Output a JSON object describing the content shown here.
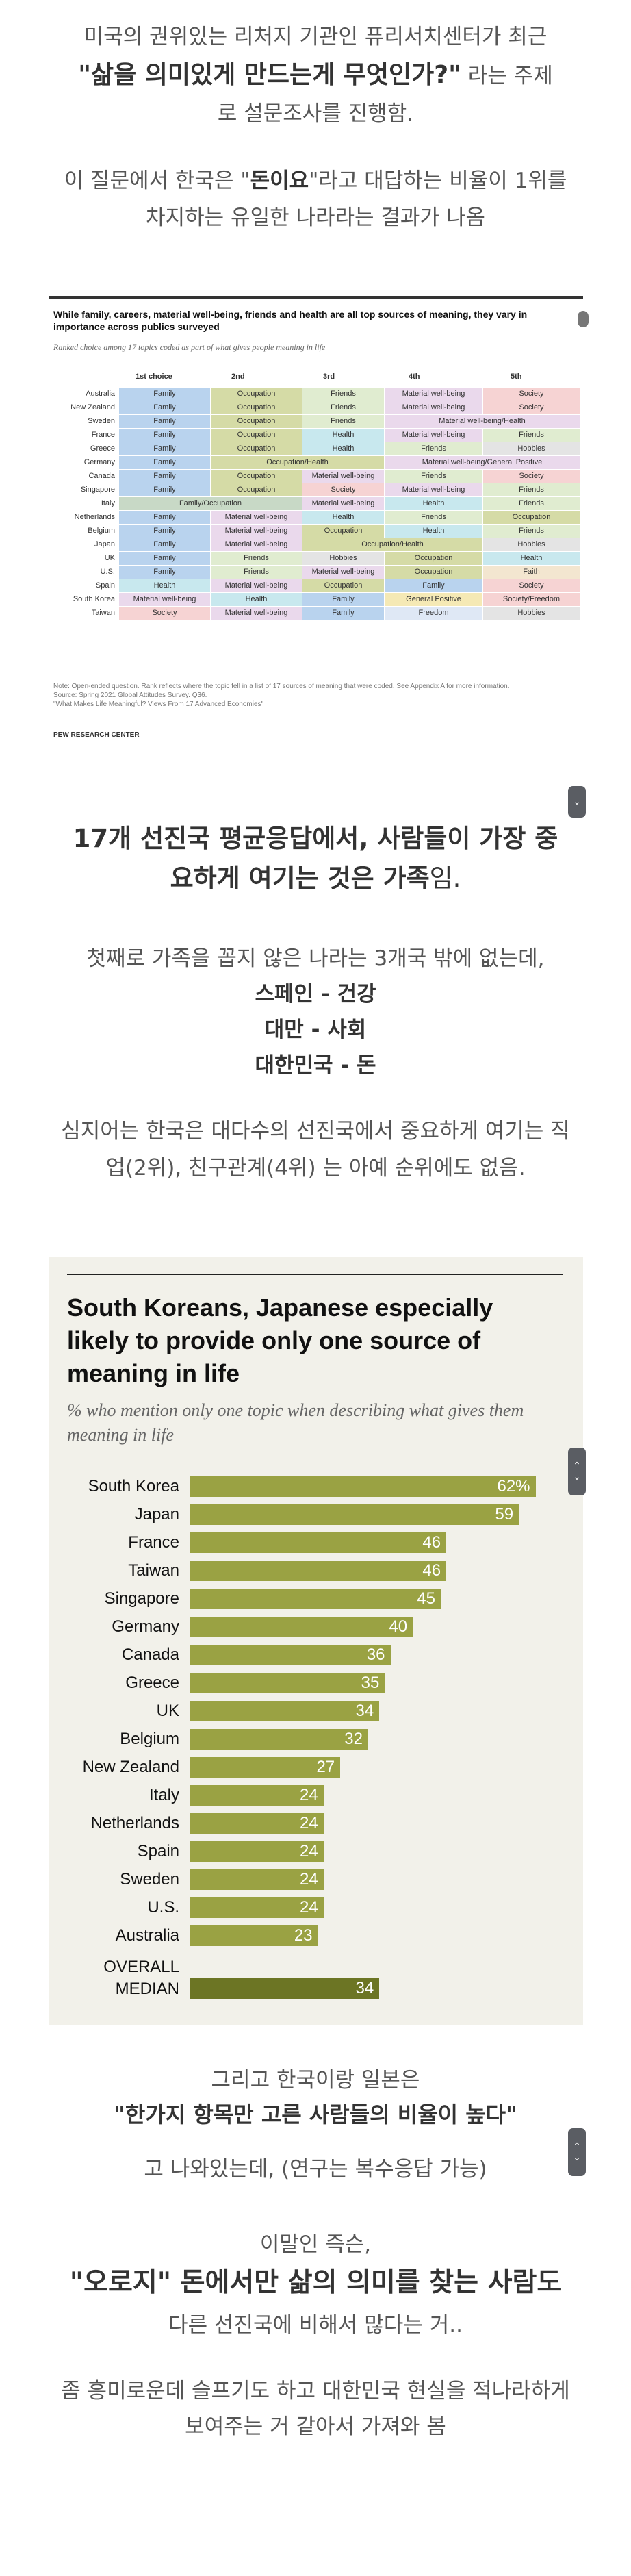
{
  "intro": {
    "line1": "미국의 권위있는 리처지 기관인 퓨리서치센터가 최근",
    "question": "\"삶을 의미있게 만드는게 무엇인가?\"",
    "line2_tail": " 라는 주제",
    "line3": "로 설문조사를 진행함.",
    "line4_pre": "이 질문에서 한국은 \"",
    "line4_bold": "돈이요",
    "line4_post": "\"라고 대답하는 비율이 1위를",
    "line5": "차지하는 유일한 나라라는 결과가 나옴"
  },
  "table_figure": {
    "title": "While family, careers, material well-being, friends and health are all top sources of meaning, they vary in importance across publics surveyed",
    "subtitle": "Ranked choice among 17 topics coded as part of what gives people meaning in life",
    "columns": [
      "1st choice",
      "2nd",
      "3rd",
      "4th",
      "5th"
    ],
    "colors": {
      "Family": "#b9d3ee",
      "Occupation": "#d5dba6",
      "Friends": "#e0ecd0",
      "Material well-being": "#ead9ec",
      "Society": "#f6d3d3",
      "Health": "#c8e8ee",
      "Hobbies": "#e4e4e4",
      "General Positive": "#f5e9b5",
      "Faith": "#f3e6d0",
      "Freedom": "#dfe8f5",
      "Society/Freedom": "#f6d3d3",
      "Occupation/Health": "#d5dba6",
      "Family/Occupation": "#c8d9c6",
      "Material well-being/Health": "#ead9ec",
      "Material well-being/General Positive": "#ead9ec"
    },
    "rows": [
      {
        "country": "Australia",
        "cells": [
          {
            "t": "Family",
            "s": 1
          },
          {
            "t": "Occupation",
            "s": 1
          },
          {
            "t": "Friends",
            "s": 1
          },
          {
            "t": "Material well-being",
            "s": 1
          },
          {
            "t": "Society",
            "s": 1
          }
        ]
      },
      {
        "country": "New Zealand",
        "cells": [
          {
            "t": "Family",
            "s": 1
          },
          {
            "t": "Occupation",
            "s": 1
          },
          {
            "t": "Friends",
            "s": 1
          },
          {
            "t": "Material well-being",
            "s": 1
          },
          {
            "t": "Society",
            "s": 1
          }
        ]
      },
      {
        "country": "Sweden",
        "cells": [
          {
            "t": "Family",
            "s": 1
          },
          {
            "t": "Occupation",
            "s": 1
          },
          {
            "t": "Friends",
            "s": 1
          },
          {
            "t": "Material well-being/Health",
            "s": 2
          }
        ]
      },
      {
        "country": "France",
        "cells": [
          {
            "t": "Family",
            "s": 1
          },
          {
            "t": "Occupation",
            "s": 1
          },
          {
            "t": "Health",
            "s": 1
          },
          {
            "t": "Material well-being",
            "s": 1
          },
          {
            "t": "Friends",
            "s": 1
          }
        ]
      },
      {
        "country": "Greece",
        "cells": [
          {
            "t": "Family",
            "s": 1
          },
          {
            "t": "Occupation",
            "s": 1
          },
          {
            "t": "Health",
            "s": 1
          },
          {
            "t": "Friends",
            "s": 1
          },
          {
            "t": "Hobbies",
            "s": 1
          }
        ]
      },
      {
        "country": "Germany",
        "cells": [
          {
            "t": "Family",
            "s": 1
          },
          {
            "t": "Occupation/Health",
            "s": 2
          },
          {
            "t": "Material well-being/General Positive",
            "s": 2
          }
        ]
      },
      {
        "country": "Canada",
        "cells": [
          {
            "t": "Family",
            "s": 1
          },
          {
            "t": "Occupation",
            "s": 1
          },
          {
            "t": "Material well-being",
            "s": 1
          },
          {
            "t": "Friends",
            "s": 1
          },
          {
            "t": "Society",
            "s": 1
          }
        ]
      },
      {
        "country": "Singapore",
        "cells": [
          {
            "t": "Family",
            "s": 1
          },
          {
            "t": "Occupation",
            "s": 1
          },
          {
            "t": "Society",
            "s": 1
          },
          {
            "t": "Material well-being",
            "s": 1
          },
          {
            "t": "Friends",
            "s": 1
          }
        ]
      },
      {
        "country": "Italy",
        "cells": [
          {
            "t": "Family/Occupation",
            "s": 2
          },
          {
            "t": "Material well-being",
            "s": 1
          },
          {
            "t": "Health",
            "s": 1
          },
          {
            "t": "Friends",
            "s": 1
          }
        ]
      },
      {
        "country": "Netherlands",
        "cells": [
          {
            "t": "Family",
            "s": 1
          },
          {
            "t": "Material well-being",
            "s": 1
          },
          {
            "t": "Health",
            "s": 1
          },
          {
            "t": "Friends",
            "s": 1
          },
          {
            "t": "Occupation",
            "s": 1
          }
        ]
      },
      {
        "country": "Belgium",
        "cells": [
          {
            "t": "Family",
            "s": 1
          },
          {
            "t": "Material well-being",
            "s": 1
          },
          {
            "t": "Occupation",
            "s": 1
          },
          {
            "t": "Health",
            "s": 1
          },
          {
            "t": "Friends",
            "s": 1
          }
        ]
      },
      {
        "country": "Japan",
        "cells": [
          {
            "t": "Family",
            "s": 1
          },
          {
            "t": "Material well-being",
            "s": 1
          },
          {
            "t": "Occupation/Health",
            "s": 2
          },
          {
            "t": "Hobbies",
            "s": 1
          }
        ]
      },
      {
        "country": "UK",
        "cells": [
          {
            "t": "Family",
            "s": 1
          },
          {
            "t": "Friends",
            "s": 1
          },
          {
            "t": "Hobbies",
            "s": 1
          },
          {
            "t": "Occupation",
            "s": 1
          },
          {
            "t": "Health",
            "s": 1
          }
        ]
      },
      {
        "country": "U.S.",
        "cells": [
          {
            "t": "Family",
            "s": 1
          },
          {
            "t": "Friends",
            "s": 1
          },
          {
            "t": "Material well-being",
            "s": 1
          },
          {
            "t": "Occupation",
            "s": 1
          },
          {
            "t": "Faith",
            "s": 1
          }
        ]
      },
      {
        "country": "Spain",
        "cells": [
          {
            "t": "Health",
            "s": 1
          },
          {
            "t": "Material well-being",
            "s": 1
          },
          {
            "t": "Occupation",
            "s": 1
          },
          {
            "t": "Family",
            "s": 1
          },
          {
            "t": "Society",
            "s": 1
          }
        ]
      },
      {
        "country": "South Korea",
        "cells": [
          {
            "t": "Material well-being",
            "s": 1
          },
          {
            "t": "Health",
            "s": 1
          },
          {
            "t": "Family",
            "s": 1
          },
          {
            "t": "General Positive",
            "s": 1
          },
          {
            "t": "Society/Freedom",
            "s": 1
          }
        ]
      },
      {
        "country": "Taiwan",
        "cells": [
          {
            "t": "Society",
            "s": 1
          },
          {
            "t": "Material well-being",
            "s": 1
          },
          {
            "t": "Family",
            "s": 1
          },
          {
            "t": "Freedom",
            "s": 1
          },
          {
            "t": "Hobbies",
            "s": 1
          }
        ]
      }
    ],
    "note": "Note: Open-ended question. Rank reflects where the topic fell in a list of 17 sources of meaning that were coded. See Appendix A for more information.",
    "source": "Source: Spring 2021 Global Attitudes Survey. Q36.",
    "report": "\"What Makes Life Meaningful? Views From 17 Advanced Economies\"",
    "org": "PEW RESEARCH CENTER"
  },
  "middle": {
    "headline_pre": "17개 선진국 평균응답에서, 사람들이 가장 중",
    "headline_mid": "요하게 여기는 것은 가족",
    "headline_post": "임.",
    "p1": "첫째로 가족을 꼽지 않은 나라는 3개국 밖에 없는데,",
    "country1": "스페인 - 건강",
    "country2": "대만 - 사회",
    "country3": "대한민국 - 돈",
    "p2_line1": "심지어는 한국은 대다수의 선진국에서 중요하게 여기는 직",
    "p2_line2": "업(2위), 친구관계(4위) 는 아예 순위에도 없음."
  },
  "chart_data": {
    "type": "bar",
    "title": "South Koreans, Japanese especially likely to provide only one source of meaning in life",
    "subtitle": "% who mention only one topic when describing what gives them meaning in life",
    "categories": [
      "South Korea",
      "Japan",
      "France",
      "Taiwan",
      "Singapore",
      "Germany",
      "Canada",
      "Greece",
      "UK",
      "Belgium",
      "New Zealand",
      "Italy",
      "Netherlands",
      "Spain",
      "Sweden",
      "U.S.",
      "Australia",
      "OVERALL MEDIAN"
    ],
    "values": [
      62,
      59,
      46,
      46,
      45,
      40,
      36,
      35,
      34,
      32,
      27,
      24,
      24,
      24,
      24,
      24,
      23,
      34
    ],
    "value_labels": [
      "62%",
      "59",
      "46",
      "46",
      "45",
      "40",
      "36",
      "35",
      "34",
      "32",
      "27",
      "24",
      "24",
      "24",
      "24",
      "24",
      "23",
      "34"
    ],
    "median_label_line1": "OVERALL",
    "median_label_line2": "MEDIAN",
    "bar_color": "#9aa243",
    "median_color": "#6c7524",
    "xlim": [
      0,
      65
    ]
  },
  "outro": {
    "l1": "그리고 한국이랑 일본은",
    "l2": "\"한가지 항목만 고른 사람들의 비율이 높다\"",
    "l3": "고 나와있는데, (연구는 복수응답 가능)",
    "l4": "이말인 즉슨,",
    "l5": "\"오로지\" 돈에서만 삶의 의미를 찾는 사람도",
    "l6": "다른 선진국에 비해서 많다는 거..",
    "l7": "좀 흥미로운데 슬프기도 하고 대한민국 현실을 적나라하게",
    "l8": "보여주는 거 같아서 가져와 봄"
  },
  "scroll_glyphs": {
    "up": "⌃",
    "down": "⌄"
  }
}
